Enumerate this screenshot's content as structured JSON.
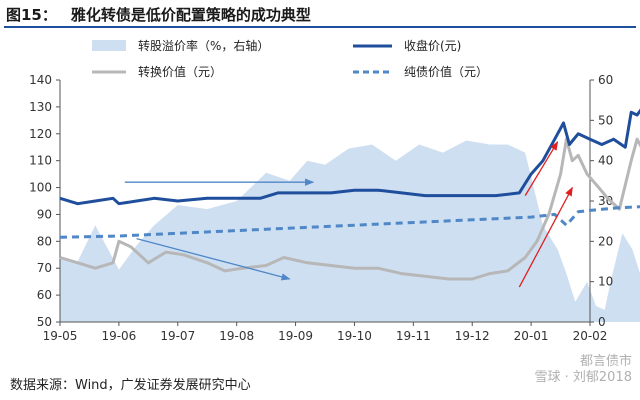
{
  "figure": {
    "number": "图15：",
    "title": "雅化转债是低价配置策略的成功典型",
    "source": "数据来源：Wind，广发证券发展研究中心",
    "watermark_line1": "都言债市",
    "watermark_line2": "雪球 · 刘郁2018"
  },
  "chart_data": {
    "type": "line",
    "legend": {
      "premium": "转股溢价率（%，右轴）",
      "close": "收盘价(元)",
      "conversion": "转换价值（元）",
      "bond": "纯债价值（元）"
    },
    "x_ticks": [
      "19-05",
      "19-06",
      "19-07",
      "19-08",
      "19-09",
      "19-10",
      "19-11",
      "19-12",
      "20-01",
      "20-02"
    ],
    "y_left": {
      "min": 50,
      "max": 140,
      "ticks": [
        50,
        60,
        70,
        80,
        90,
        100,
        110,
        120,
        130,
        140
      ]
    },
    "y_right": {
      "min": 0,
      "max": 60,
      "ticks": [
        0,
        10,
        20,
        30,
        40,
        50,
        60
      ]
    },
    "colors": {
      "premium": "#cfdff2",
      "close": "#1f4e9c",
      "conversion": "#b7b7b7",
      "bond": "#4f87c7",
      "arrow_blue": "#4f87c7",
      "arrow_red": "#e02020"
    },
    "series": [
      {
        "name": "转股溢价率（%，右轴）",
        "key": "premium",
        "axis": "right",
        "points": [
          [
            0.0,
            16
          ],
          [
            0.3,
            15
          ],
          [
            0.5,
            21
          ],
          [
            0.6,
            24
          ],
          [
            1.0,
            13
          ],
          [
            1.3,
            19
          ],
          [
            1.6,
            24
          ],
          [
            2.0,
            29
          ],
          [
            2.5,
            28
          ],
          [
            3.0,
            30
          ],
          [
            3.5,
            37
          ],
          [
            3.9,
            35
          ],
          [
            4.2,
            40
          ],
          [
            4.5,
            39
          ],
          [
            4.9,
            43
          ],
          [
            5.3,
            44
          ],
          [
            5.7,
            40
          ],
          [
            6.1,
            44
          ],
          [
            6.5,
            42
          ],
          [
            6.9,
            45
          ],
          [
            7.3,
            44
          ],
          [
            7.6,
            44
          ],
          [
            7.9,
            42
          ],
          [
            8.2,
            24
          ],
          [
            8.45,
            18
          ],
          [
            8.6,
            12
          ],
          [
            8.75,
            5
          ],
          [
            8.95,
            10
          ],
          [
            9.1,
            4
          ],
          [
            9.25,
            3
          ],
          [
            9.35,
            10
          ],
          [
            9.55,
            22
          ],
          [
            9.72,
            18
          ],
          [
            9.85,
            12
          ],
          [
            10.0,
            8
          ]
        ]
      },
      {
        "name": "收盘价(元)",
        "key": "close",
        "axis": "left",
        "points": [
          [
            0.0,
            96
          ],
          [
            0.3,
            94
          ],
          [
            0.6,
            95
          ],
          [
            0.9,
            96
          ],
          [
            1.0,
            94
          ],
          [
            1.3,
            95
          ],
          [
            1.6,
            96
          ],
          [
            2.0,
            95
          ],
          [
            2.5,
            96
          ],
          [
            3.0,
            96
          ],
          [
            3.4,
            96
          ],
          [
            3.7,
            98
          ],
          [
            4.2,
            98
          ],
          [
            4.6,
            98
          ],
          [
            5.0,
            99
          ],
          [
            5.4,
            99
          ],
          [
            5.8,
            98
          ],
          [
            6.2,
            97
          ],
          [
            6.6,
            97
          ],
          [
            7.0,
            97
          ],
          [
            7.4,
            97
          ],
          [
            7.8,
            98
          ],
          [
            8.0,
            105
          ],
          [
            8.2,
            110
          ],
          [
            8.4,
            118
          ],
          [
            8.55,
            124
          ],
          [
            8.65,
            116
          ],
          [
            8.8,
            120
          ],
          [
            9.0,
            118
          ],
          [
            9.2,
            116
          ],
          [
            9.4,
            118
          ],
          [
            9.6,
            115
          ],
          [
            9.7,
            128
          ],
          [
            9.8,
            127
          ],
          [
            9.9,
            130
          ],
          [
            10.0,
            132
          ]
        ]
      },
      {
        "name": "转换价值（元）",
        "key": "conversion",
        "axis": "left",
        "points": [
          [
            0.0,
            74
          ],
          [
            0.3,
            72
          ],
          [
            0.6,
            70
          ],
          [
            0.9,
            72
          ],
          [
            1.0,
            80
          ],
          [
            1.2,
            78
          ],
          [
            1.5,
            72
          ],
          [
            1.8,
            76
          ],
          [
            2.1,
            75
          ],
          [
            2.5,
            72
          ],
          [
            2.8,
            69
          ],
          [
            3.1,
            70
          ],
          [
            3.5,
            71
          ],
          [
            3.8,
            74
          ],
          [
            4.2,
            72
          ],
          [
            4.6,
            71
          ],
          [
            5.0,
            70
          ],
          [
            5.4,
            70
          ],
          [
            5.8,
            68
          ],
          [
            6.2,
            67
          ],
          [
            6.6,
            66
          ],
          [
            7.0,
            66
          ],
          [
            7.3,
            68
          ],
          [
            7.6,
            69
          ],
          [
            7.9,
            74
          ],
          [
            8.1,
            80
          ],
          [
            8.3,
            90
          ],
          [
            8.5,
            105
          ],
          [
            8.6,
            118
          ],
          [
            8.7,
            110
          ],
          [
            8.8,
            112
          ],
          [
            8.95,
            105
          ],
          [
            9.15,
            100
          ],
          [
            9.3,
            96
          ],
          [
            9.5,
            92
          ],
          [
            9.7,
            110
          ],
          [
            9.8,
            118
          ],
          [
            9.9,
            114
          ],
          [
            10.0,
            122
          ]
        ]
      },
      {
        "name": "纯债价值（元）",
        "key": "bond",
        "axis": "left",
        "points": [
          [
            0.0,
            81.5
          ],
          [
            1.0,
            82
          ],
          [
            2.0,
            83
          ],
          [
            3.0,
            84
          ],
          [
            4.0,
            85
          ],
          [
            5.0,
            86
          ],
          [
            6.0,
            87
          ],
          [
            7.0,
            88
          ],
          [
            8.0,
            89
          ],
          [
            8.4,
            90
          ],
          [
            8.6,
            86
          ],
          [
            8.8,
            91
          ],
          [
            9.0,
            91.5
          ],
          [
            9.5,
            92.5
          ],
          [
            10.0,
            93
          ]
        ]
      }
    ],
    "annotations": [
      {
        "type": "arrow",
        "color": "arrow_blue",
        "from": [
          1.1,
          102
        ],
        "to": [
          4.3,
          102
        ]
      },
      {
        "type": "arrow",
        "color": "arrow_blue",
        "from": [
          1.3,
          81
        ],
        "to": [
          3.9,
          66
        ]
      },
      {
        "type": "arrow",
        "color": "arrow_red",
        "from": [
          7.9,
          97
        ],
        "to": [
          8.45,
          117
        ]
      },
      {
        "type": "arrow",
        "color": "arrow_red",
        "from": [
          7.8,
          63
        ],
        "to": [
          8.7,
          100
        ]
      }
    ]
  }
}
